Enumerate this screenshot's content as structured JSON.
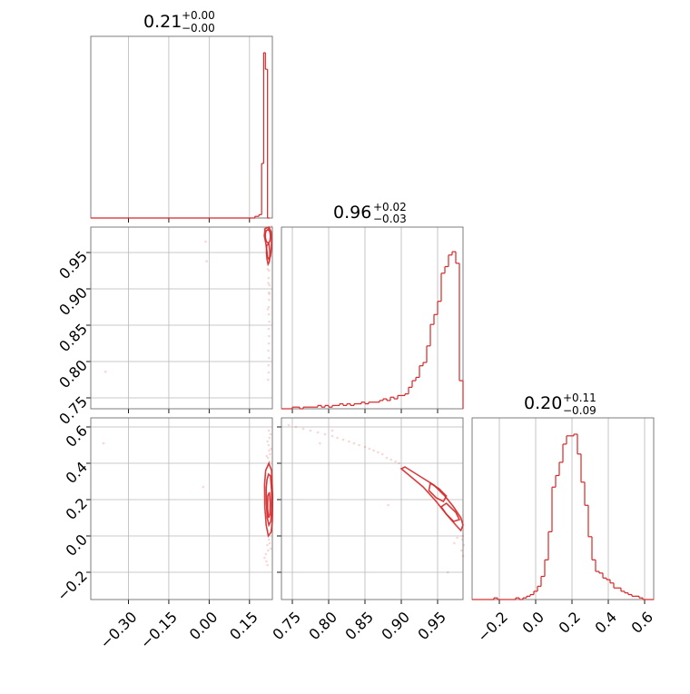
{
  "chart_data": {
    "type": "corner",
    "color": "#d62728",
    "parameters": [
      {
        "median": "0.21",
        "plus": "+0.00",
        "minus": "−0.00",
        "range": [
          -0.44,
          0.235
        ],
        "ticks": [
          -0.3,
          -0.15,
          0.0,
          0.15
        ],
        "tick_labels": [
          "−0.30",
          "−0.15",
          "0.00",
          "0.15"
        ]
      },
      {
        "median": "0.96",
        "plus": "+0.02",
        "minus": "−0.03",
        "range": [
          0.735,
          0.985
        ],
        "ticks": [
          0.75,
          0.8,
          0.85,
          0.9,
          0.95
        ],
        "tick_labels": [
          "0.75",
          "0.80",
          "0.85",
          "0.90",
          "0.95"
        ]
      },
      {
        "median": "0.20",
        "plus": "+0.11",
        "minus": "−0.09",
        "range": [
          -0.35,
          0.65
        ],
        "ticks": [
          -0.2,
          0.0,
          0.2,
          0.4,
          0.6
        ],
        "tick_labels": [
          "−0.2",
          "0.0",
          "0.2",
          "0.4",
          "0.6"
        ]
      }
    ],
    "hist1": {
      "bin_edges": [
        0.17,
        0.185,
        0.195,
        0.2025,
        0.209,
        0.217,
        0.225
      ],
      "counts": [
        0.01,
        0.02,
        0.33,
        1.0,
        0.9,
        0.0
      ]
    },
    "hist2": {
      "bin_edges": [
        0.735,
        0.74,
        0.745,
        0.75,
        0.755,
        0.76,
        0.765,
        0.77,
        0.775,
        0.78,
        0.785,
        0.79,
        0.795,
        0.8,
        0.805,
        0.81,
        0.815,
        0.82,
        0.825,
        0.83,
        0.835,
        0.84,
        0.845,
        0.85,
        0.855,
        0.86,
        0.865,
        0.87,
        0.875,
        0.88,
        0.885,
        0.89,
        0.895,
        0.9,
        0.905,
        0.91,
        0.915,
        0.92,
        0.925,
        0.93,
        0.935,
        0.94,
        0.945,
        0.95,
        0.955,
        0.96,
        0.965,
        0.97,
        0.975,
        0.98,
        0.985
      ],
      "counts": [
        0.0,
        0.0,
        0.0,
        0.01,
        0.01,
        0.0,
        0.01,
        0.01,
        0.01,
        0.01,
        0.02,
        0.01,
        0.02,
        0.01,
        0.02,
        0.02,
        0.03,
        0.02,
        0.03,
        0.02,
        0.03,
        0.03,
        0.04,
        0.03,
        0.04,
        0.04,
        0.04,
        0.05,
        0.06,
        0.05,
        0.07,
        0.06,
        0.08,
        0.08,
        0.09,
        0.13,
        0.17,
        0.19,
        0.26,
        0.28,
        0.38,
        0.51,
        0.57,
        0.65,
        0.82,
        0.86,
        0.93,
        0.95,
        0.88,
        0.17
      ]
    },
    "hist3": {
      "bin_edges": [
        -0.35,
        -0.33,
        -0.31,
        -0.29,
        -0.27,
        -0.25,
        -0.23,
        -0.21,
        -0.19,
        -0.17,
        -0.15,
        -0.13,
        -0.11,
        -0.09,
        -0.07,
        -0.05,
        -0.03,
        -0.01,
        0.01,
        0.03,
        0.05,
        0.07,
        0.09,
        0.11,
        0.13,
        0.15,
        0.17,
        0.19,
        0.21,
        0.23,
        0.25,
        0.27,
        0.29,
        0.31,
        0.33,
        0.35,
        0.37,
        0.39,
        0.41,
        0.43,
        0.45,
        0.47,
        0.49,
        0.51,
        0.53,
        0.55,
        0.57,
        0.59,
        0.61,
        0.63,
        0.65
      ],
      "counts": [
        0.0,
        0.0,
        0.0,
        0.0,
        0.0,
        0.0,
        0.01,
        0.0,
        0.0,
        0.0,
        0.0,
        0.0,
        0.01,
        0.0,
        0.01,
        0.02,
        0.03,
        0.05,
        0.08,
        0.14,
        0.24,
        0.41,
        0.68,
        0.75,
        0.83,
        0.94,
        0.99,
        0.99,
        1.0,
        0.88,
        0.71,
        0.57,
        0.38,
        0.24,
        0.17,
        0.16,
        0.13,
        0.12,
        0.1,
        0.07,
        0.07,
        0.05,
        0.04,
        0.03,
        0.02,
        0.02,
        0.01,
        0.0,
        0.0,
        0.0
      ]
    },
    "pairs": {
      "x1_x2": {
        "contours": [
          [
            [
              0.212,
              0.98
            ],
            [
              0.22,
              0.982
            ],
            [
              0.226,
              0.978
            ],
            [
              0.228,
              0.972
            ],
            [
              0.226,
              0.966
            ],
            [
              0.22,
              0.963
            ],
            [
              0.213,
              0.965
            ],
            [
              0.209,
              0.97
            ],
            [
              0.209,
              0.976
            ]
          ],
          [
            [
              0.208,
              0.983
            ],
            [
              0.222,
              0.985
            ],
            [
              0.23,
              0.979
            ],
            [
              0.232,
              0.968
            ],
            [
              0.231,
              0.955
            ],
            [
              0.228,
              0.945
            ],
            [
              0.223,
              0.94
            ],
            [
              0.217,
              0.944
            ],
            [
              0.214,
              0.954
            ],
            [
              0.21,
              0.964
            ],
            [
              0.205,
              0.973
            ]
          ],
          [
            [
              0.214,
              0.96
            ],
            [
              0.222,
              0.962
            ],
            [
              0.226,
              0.95
            ],
            [
              0.224,
              0.938
            ],
            [
              0.219,
              0.934
            ],
            [
              0.215,
              0.941
            ],
            [
              0.213,
              0.95
            ]
          ]
        ],
        "points": [
          [
            0.222,
            0.935
          ],
          [
            0.223,
            0.925
          ],
          [
            0.221,
            0.915
          ],
          [
            0.224,
            0.905
          ],
          [
            0.222,
            0.895
          ],
          [
            0.223,
            0.885
          ],
          [
            0.221,
            0.875
          ],
          [
            0.222,
            0.865
          ],
          [
            0.224,
            0.855
          ],
          [
            0.221,
            0.845
          ],
          [
            0.223,
            0.835
          ],
          [
            0.222,
            0.825
          ],
          [
            0.22,
            0.815
          ],
          [
            0.223,
            0.805
          ],
          [
            0.221,
            0.795
          ],
          [
            0.222,
            0.785
          ],
          [
            0.219,
            0.775
          ],
          [
            -0.013,
            0.965
          ],
          [
            -0.009,
            0.938
          ],
          [
            -0.385,
            0.786
          ],
          [
            0.206,
            0.982
          ],
          [
            0.232,
            0.986
          ],
          [
            0.218,
            0.927
          ],
          [
            0.22,
            0.908
          ],
          [
            0.224,
            0.893
          ],
          [
            0.218,
            0.872
          ]
        ]
      },
      "x1_x3": {
        "contours": [
          [
            [
              0.215,
              0.31
            ],
            [
              0.221,
              0.34
            ],
            [
              0.228,
              0.33
            ],
            [
              0.232,
              0.25
            ],
            [
              0.232,
              0.14
            ],
            [
              0.229,
              0.08
            ],
            [
              0.222,
              0.06
            ],
            [
              0.216,
              0.1
            ],
            [
              0.213,
              0.18
            ],
            [
              0.212,
              0.26
            ]
          ],
          [
            [
              0.21,
              0.36
            ],
            [
              0.222,
              0.4
            ],
            [
              0.232,
              0.36
            ],
            [
              0.236,
              0.22
            ],
            [
              0.235,
              0.08
            ],
            [
              0.23,
              0.02
            ],
            [
              0.22,
              0.0
            ],
            [
              0.212,
              0.06
            ],
            [
              0.207,
              0.16
            ],
            [
              0.206,
              0.28
            ]
          ],
          [
            [
              0.218,
              0.22
            ],
            [
              0.224,
              0.24
            ],
            [
              0.227,
              0.18
            ],
            [
              0.226,
              0.12
            ],
            [
              0.221,
              0.1
            ],
            [
              0.217,
              0.15
            ]
          ]
        ],
        "points": [
          [
            0.222,
            0.58
          ],
          [
            0.224,
            0.54
          ],
          [
            0.221,
            0.5
          ],
          [
            0.223,
            0.47
          ],
          [
            0.226,
            0.45
          ],
          [
            0.219,
            0.43
          ],
          [
            0.225,
            0.41
          ],
          [
            0.221,
            0.39
          ],
          [
            0.218,
            0.03
          ],
          [
            0.222,
            -0.02
          ],
          [
            0.216,
            -0.05
          ],
          [
            0.219,
            -0.08
          ],
          [
            0.211,
            -0.1
          ],
          [
            0.206,
            -0.12
          ],
          [
            0.213,
            -0.14
          ],
          [
            0.217,
            -0.16
          ],
          [
            0.225,
            -0.04
          ],
          [
            0.229,
            -0.07
          ],
          [
            -0.022,
            0.27
          ],
          [
            -0.393,
            0.51
          ],
          [
            0.228,
            0.56
          ],
          [
            0.217,
            0.52
          ],
          [
            0.23,
            0.48
          ],
          [
            0.214,
            0.44
          ]
        ]
      },
      "x2_x3": {
        "contours": [
          [
            [
              0.905,
              0.38
            ],
            [
              0.925,
              0.33
            ],
            [
              0.945,
              0.28
            ],
            [
              0.96,
              0.22
            ],
            [
              0.972,
              0.16
            ],
            [
              0.982,
              0.1
            ],
            [
              0.985,
              0.06
            ],
            [
              0.982,
              0.03
            ],
            [
              0.975,
              0.06
            ],
            [
              0.962,
              0.12
            ],
            [
              0.948,
              0.19
            ],
            [
              0.93,
              0.27
            ],
            [
              0.912,
              0.33
            ],
            [
              0.9,
              0.37
            ]
          ],
          [
            [
              0.94,
              0.29
            ],
            [
              0.952,
              0.26
            ],
            [
              0.962,
              0.22
            ],
            [
              0.958,
              0.19
            ],
            [
              0.948,
              0.21
            ],
            [
              0.938,
              0.25
            ]
          ],
          [
            [
              0.962,
              0.18
            ],
            [
              0.975,
              0.13
            ],
            [
              0.98,
              0.09
            ],
            [
              0.972,
              0.08
            ],
            [
              0.962,
              0.12
            ],
            [
              0.955,
              0.16
            ]
          ]
        ],
        "points": [
          [
            0.745,
            0.61
          ],
          [
            0.755,
            0.6
          ],
          [
            0.765,
            0.59
          ],
          [
            0.775,
            0.58
          ],
          [
            0.785,
            0.57
          ],
          [
            0.795,
            0.56
          ],
          [
            0.805,
            0.55
          ],
          [
            0.812,
            0.54
          ],
          [
            0.82,
            0.53
          ],
          [
            0.828,
            0.52
          ],
          [
            0.835,
            0.51
          ],
          [
            0.842,
            0.5
          ],
          [
            0.85,
            0.49
          ],
          [
            0.856,
            0.48
          ],
          [
            0.862,
            0.47
          ],
          [
            0.868,
            0.46
          ],
          [
            0.874,
            0.45
          ],
          [
            0.88,
            0.43
          ],
          [
            0.886,
            0.42
          ],
          [
            0.892,
            0.41
          ],
          [
            0.897,
            0.4
          ],
          [
            0.985,
            0.0
          ],
          [
            0.984,
            -0.02
          ],
          [
            0.986,
            -0.05
          ],
          [
            0.983,
            -0.08
          ],
          [
            0.985,
            -0.11
          ],
          [
            0.882,
            0.17
          ],
          [
            0.788,
            0.51
          ],
          [
            0.805,
            0.58
          ],
          [
            0.964,
            -0.2
          ],
          [
            0.973,
            -0.04
          ],
          [
            0.977,
            -0.01
          ]
        ]
      }
    }
  }
}
